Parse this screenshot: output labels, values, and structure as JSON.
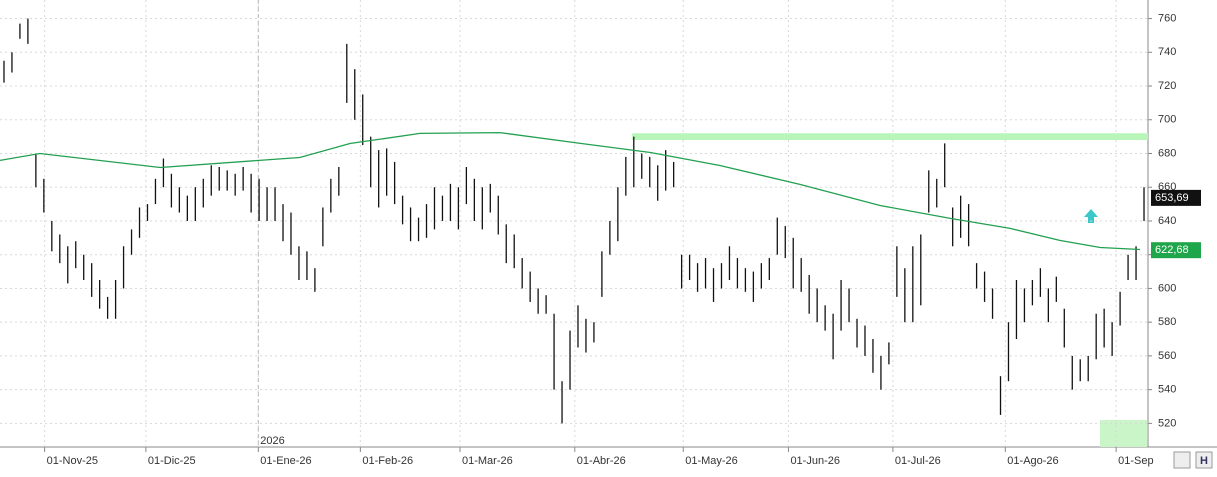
{
  "chart_data": {
    "type": "ohlc",
    "high": [
      735,
      740,
      757,
      760,
      680,
      665,
      640,
      632,
      625,
      628,
      620,
      615,
      605,
      595,
      605,
      625,
      635,
      648,
      650,
      665,
      677,
      668,
      660,
      655,
      660,
      665,
      673,
      672,
      670,
      668,
      672,
      668,
      665,
      660,
      660,
      650,
      645,
      625,
      622,
      612,
      648,
      665,
      672,
      745,
      730,
      715,
      690,
      682,
      683,
      675,
      655,
      648,
      642,
      650,
      660,
      655,
      662,
      660,
      672,
      665,
      660,
      662,
      655,
      638,
      632,
      618,
      610,
      600,
      596,
      585,
      545,
      575,
      590,
      582,
      580,
      622,
      640,
      660,
      678,
      690,
      680,
      678,
      673,
      682,
      675,
      620,
      620,
      615,
      618,
      612,
      615,
      625,
      618,
      612,
      610,
      615,
      618,
      642,
      637,
      630,
      618,
      608,
      600,
      590,
      585,
      605,
      600,
      582,
      578,
      570,
      560,
      568,
      625,
      612,
      625,
      632,
      670,
      665,
      686,
      648,
      655,
      650,
      615,
      610,
      600,
      548,
      580,
      605,
      600,
      605,
      612,
      600,
      607,
      588,
      560,
      558,
      560,
      585,
      588,
      580,
      598,
      620,
      625,
      660
    ],
    "low": [
      722,
      728,
      748,
      745,
      660,
      645,
      622,
      615,
      603,
      612,
      605,
      595,
      588,
      582,
      582,
      600,
      620,
      630,
      640,
      650,
      660,
      648,
      645,
      640,
      640,
      648,
      655,
      658,
      658,
      655,
      658,
      645,
      640,
      640,
      640,
      628,
      620,
      605,
      605,
      598,
      625,
      645,
      655,
      710,
      700,
      685,
      660,
      648,
      655,
      650,
      638,
      628,
      628,
      630,
      635,
      640,
      640,
      635,
      650,
      640,
      635,
      645,
      632,
      615,
      612,
      600,
      592,
      585,
      585,
      540,
      520,
      540,
      565,
      562,
      568,
      595,
      620,
      628,
      655,
      660,
      665,
      660,
      652,
      658,
      660,
      600,
      605,
      598,
      600,
      592,
      600,
      605,
      600,
      598,
      592,
      600,
      605,
      620,
      618,
      600,
      598,
      585,
      580,
      575,
      558,
      575,
      580,
      565,
      560,
      550,
      540,
      555,
      595,
      580,
      580,
      590,
      645,
      648,
      660,
      625,
      630,
      625,
      600,
      592,
      582,
      525,
      545,
      570,
      580,
      590,
      595,
      580,
      592,
      565,
      540,
      545,
      545,
      558,
      565,
      560,
      578,
      605,
      605,
      640
    ],
    "ma": {
      "name": "MA",
      "color": "#22a050",
      "x": [
        -0.5,
        4.5,
        19.6,
        37.1,
        43.4,
        52.2,
        62.2,
        72.3,
        81.1,
        89.8,
        99.9,
        109.9,
        118.7,
        126.2,
        132.5,
        137.5,
        142.5
      ],
      "values": [
        675.9,
        680,
        671.7,
        677.6,
        685.9,
        691.9,
        692.4,
        686,
        680.6,
        672.9,
        661.6,
        649.2,
        641.5,
        635.6,
        628.4,
        624.3,
        623.1
      ]
    },
    "resistance": {
      "x": [
        78.8,
        143.5
      ],
      "values": [
        688,
        692
      ]
    },
    "price_labels": [
      {
        "value": 653.69,
        "label": "653,69"
      },
      {
        "value": 622.68,
        "label": "622,68"
      }
    ],
    "year_marker": {
      "value": 31.9,
      "label": "2026"
    },
    "xlim": [
      -0.5,
      143.5
    ],
    "ylim": [
      506,
      771
    ],
    "yticks": [
      520,
      540,
      560,
      580,
      600,
      620,
      640,
      660,
      680,
      700,
      720,
      740,
      760
    ],
    "xticks": [
      {
        "value": 5.1,
        "label": "01-Nov-25"
      },
      {
        "value": 17.8,
        "label": "01-Dic-25"
      },
      {
        "value": 31.9,
        "label": "01-Ene-26"
      },
      {
        "value": 44.7,
        "label": "01-Feb-26"
      },
      {
        "value": 57.2,
        "label": "01-Mar-26"
      },
      {
        "value": 71.6,
        "label": "01-Abr-26"
      },
      {
        "value": 85.2,
        "label": "01-May-26"
      },
      {
        "value": 98.4,
        "label": "01-Jun-26"
      },
      {
        "value": 111.5,
        "label": "01-Jul-26"
      },
      {
        "value": 125.6,
        "label": "01-Ago-26"
      },
      {
        "value": 139.5,
        "label": "01-Sep"
      }
    ],
    "grid": true
  }
}
